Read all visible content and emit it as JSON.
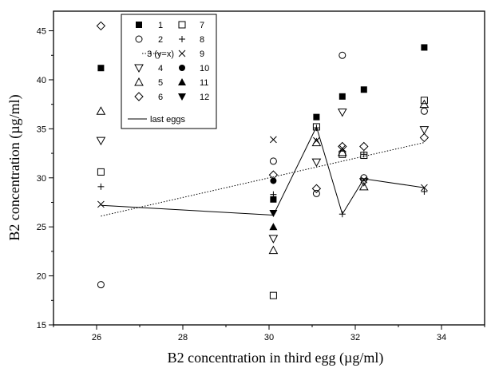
{
  "chart_data": {
    "type": "scatter",
    "xlabel": "B2 concentration in third egg (µg/ml)",
    "ylabel": "B2 concentration (µg/ml)",
    "xlim": [
      25,
      35
    ],
    "ylim": [
      15,
      47
    ],
    "xticks": [
      "26",
      "28",
      "30",
      "32",
      "34"
    ],
    "yticks": [
      "15",
      "20",
      "25",
      "30",
      "35",
      "40",
      "45"
    ],
    "grid": false,
    "legend_position": "top-left",
    "series": [
      {
        "name": "1",
        "marker": "square-filled",
        "points": [
          [
            26.1,
            41.2
          ],
          [
            30.1,
            27.8
          ],
          [
            31.1,
            36.2
          ],
          [
            31.7,
            38.3
          ],
          [
            32.2,
            39.0
          ],
          [
            33.6,
            43.3
          ]
        ]
      },
      {
        "name": "2",
        "marker": "circle-open",
        "points": [
          [
            26.1,
            19.1
          ],
          [
            30.1,
            31.7
          ],
          [
            31.1,
            28.4
          ],
          [
            31.7,
            42.5
          ],
          [
            32.2,
            30.0
          ],
          [
            33.6,
            36.8
          ]
        ]
      },
      {
        "name": "3 (y=x)",
        "marker": "dotted-line",
        "points": [
          [
            26.1,
            26.1
          ],
          [
            33.6,
            33.6
          ]
        ]
      },
      {
        "name": "4",
        "marker": "triangle-down-open",
        "points": [
          [
            26.1,
            33.8
          ],
          [
            30.1,
            23.8
          ],
          [
            31.1,
            31.6
          ],
          [
            31.7,
            36.7
          ],
          [
            32.2,
            29.6
          ],
          [
            33.6,
            34.9
          ]
        ]
      },
      {
        "name": "5",
        "marker": "triangle-up-open",
        "points": [
          [
            26.1,
            36.8
          ],
          [
            30.1,
            22.6
          ],
          [
            31.1,
            33.6
          ],
          [
            31.7,
            32.6
          ],
          [
            32.2,
            29.1
          ],
          [
            33.6,
            37.5
          ]
        ]
      },
      {
        "name": "6",
        "marker": "diamond-open",
        "points": [
          [
            26.1,
            45.5
          ],
          [
            30.1,
            30.3
          ],
          [
            31.1,
            28.9
          ],
          [
            31.7,
            33.2
          ],
          [
            32.2,
            33.2
          ],
          [
            33.6,
            34.1
          ]
        ]
      },
      {
        "name": "7",
        "marker": "square-open",
        "points": [
          [
            26.1,
            30.6
          ],
          [
            30.1,
            18.0
          ],
          [
            31.1,
            35.2
          ],
          [
            31.7,
            32.4
          ],
          [
            32.2,
            32.3
          ],
          [
            33.6,
            37.9
          ]
        ]
      },
      {
        "name": "8",
        "marker": "plus",
        "points": [
          [
            26.1,
            29.1
          ],
          [
            30.1,
            28.3
          ],
          [
            31.1,
            35.1
          ],
          [
            31.7,
            26.3
          ],
          [
            32.2,
            32.4
          ],
          [
            33.6,
            28.6
          ]
        ]
      },
      {
        "name": "9",
        "marker": "x",
        "points": [
          [
            26.1,
            27.3
          ],
          [
            30.1,
            33.9
          ],
          [
            31.1,
            33.8
          ],
          [
            31.7,
            33.0
          ],
          [
            32.2,
            29.8
          ],
          [
            33.6,
            29.0
          ]
        ]
      },
      {
        "name": "10",
        "marker": "circle-filled",
        "points": [
          [
            30.1,
            29.7
          ]
        ]
      },
      {
        "name": "11",
        "marker": "triangle-up-filled",
        "points": [
          [
            30.1,
            25.0
          ]
        ]
      },
      {
        "name": "12",
        "marker": "triangle-down-filled",
        "points": [
          [
            30.1,
            26.4
          ]
        ]
      },
      {
        "name": "last eggs",
        "marker": "solid-line",
        "points": [
          [
            26.1,
            27.2
          ],
          [
            30.1,
            26.2
          ],
          [
            31.1,
            35.2
          ],
          [
            31.7,
            26.3
          ],
          [
            32.2,
            29.9
          ],
          [
            33.6,
            29.0
          ]
        ]
      }
    ]
  }
}
